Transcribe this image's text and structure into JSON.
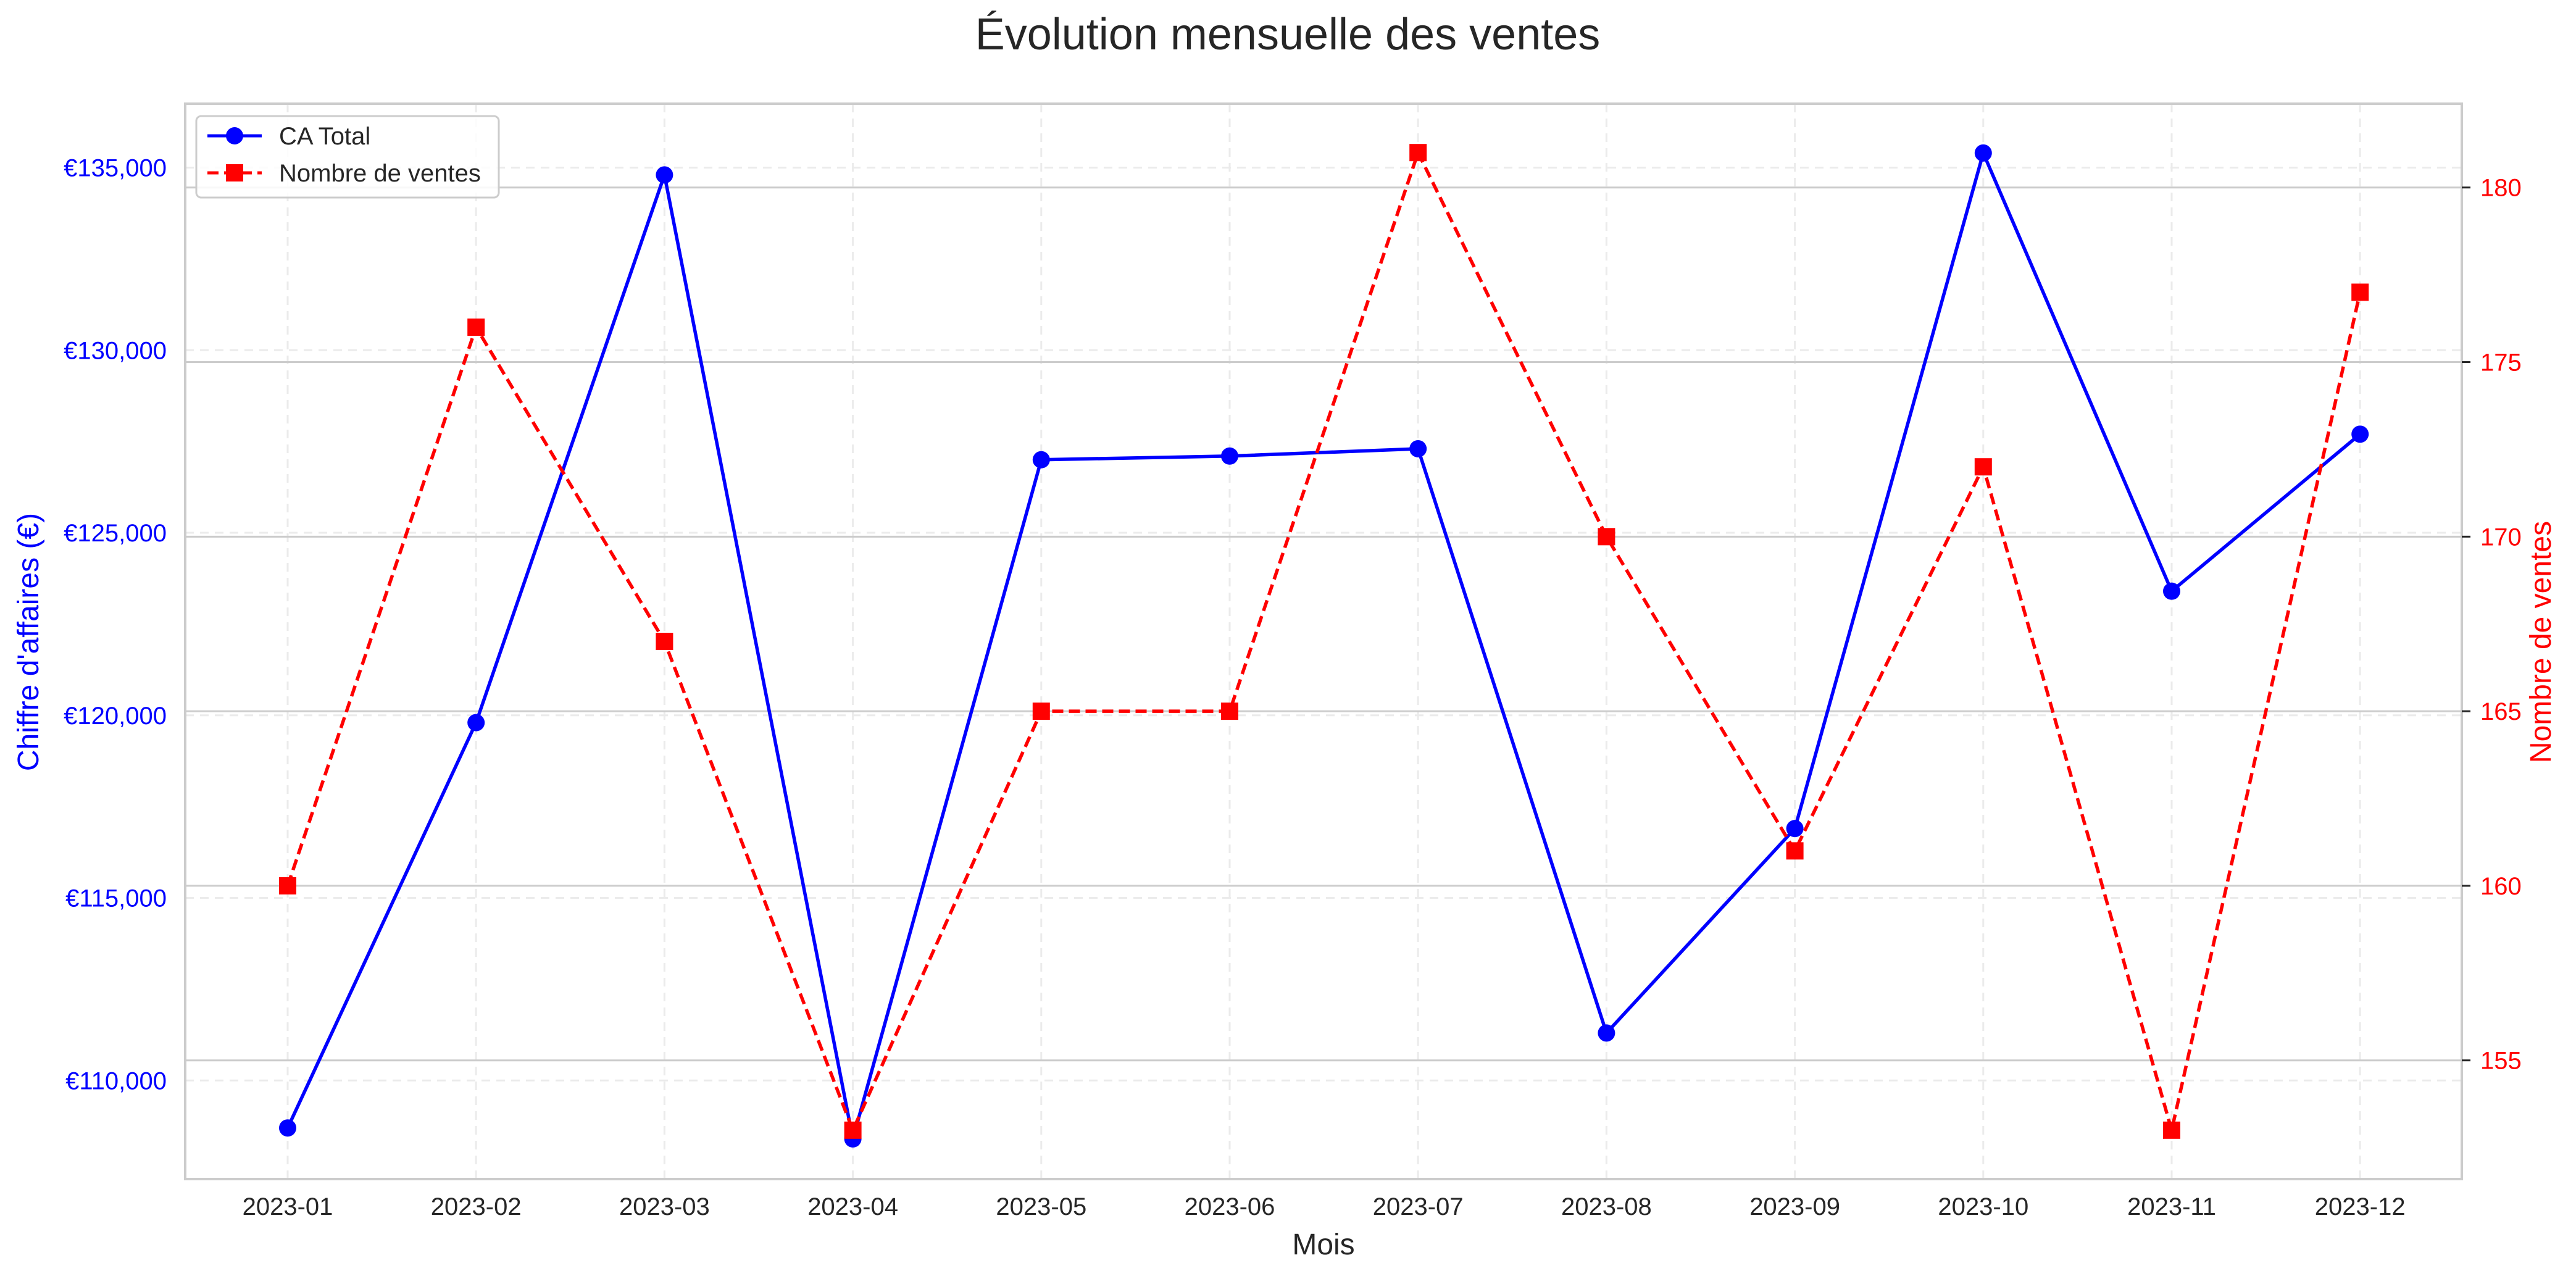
{
  "chart_data": {
    "type": "line",
    "title": "Évolution mensuelle des ventes",
    "xlabel": "Mois",
    "ylabel": "Chiffre d'affaires (€)",
    "y2label": "Nombre de ventes",
    "categories": [
      "2023-01",
      "2023-02",
      "2023-03",
      "2023-04",
      "2023-05",
      "2023-06",
      "2023-07",
      "2023-08",
      "2023-09",
      "2023-10",
      "2023-11",
      "2023-12"
    ],
    "ylim": [
      107300,
      136750
    ],
    "y2lim": [
      151.6,
      182.4
    ],
    "yticks": [
      110000,
      115000,
      120000,
      125000,
      130000,
      135000
    ],
    "yticks_labels": [
      "€110,000",
      "€115,000",
      "€120,000",
      "€125,000",
      "€130,000",
      "€135,000"
    ],
    "y2ticks": [
      155,
      160,
      165,
      170,
      175,
      180
    ],
    "y2ticks_labels": [
      "155",
      "160",
      "165",
      "170",
      "175",
      "180"
    ],
    "grid": true,
    "legend_position": "top-left",
    "series": [
      {
        "name": "CA Total",
        "axis": "left",
        "color": "#0000ff",
        "line_style": "solid",
        "marker": "circle",
        "values": [
          108700,
          119800,
          134800,
          108400,
          127000,
          127100,
          127300,
          111300,
          116900,
          135400,
          123400,
          127700
        ]
      },
      {
        "name": "Nombre de ventes",
        "axis": "right",
        "color": "#ff0000",
        "line_style": "dashed",
        "marker": "square",
        "values": [
          160,
          176,
          167,
          153,
          165,
          165,
          181,
          170,
          161,
          172,
          153,
          177
        ]
      }
    ]
  }
}
